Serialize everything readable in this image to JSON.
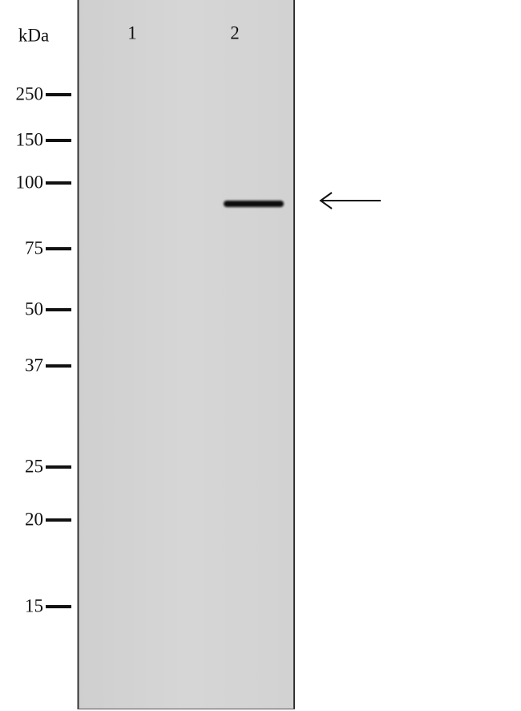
{
  "unit_label": "kDa",
  "lanes": [
    "1",
    "2"
  ],
  "markers": [
    "250",
    "150",
    "100",
    "75",
    "50",
    "37",
    "25",
    "20",
    "15"
  ]
}
